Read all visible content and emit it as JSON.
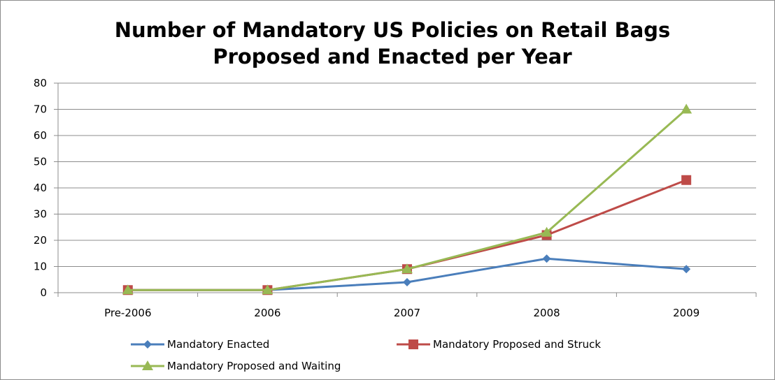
{
  "chart_data": {
    "type": "line",
    "title": "Number of Mandatory US Policies on Retail Bags",
    "subtitle": "Proposed and Enacted per Year",
    "categories": [
      "Pre-2006",
      "2006",
      "2007",
      "2008",
      "2009"
    ],
    "ylim": [
      0,
      80
    ],
    "yticks": [
      0,
      10,
      20,
      30,
      40,
      50,
      60,
      70,
      80
    ],
    "xlabel": "",
    "ylabel": "",
    "grid": true,
    "legend_position": "bottom",
    "series": [
      {
        "name": "Mandatory Enacted",
        "values": [
          1,
          1,
          4,
          13,
          9
        ],
        "color": "#4a7ebb",
        "marker": "diamond"
      },
      {
        "name": "Mandatory Proposed and Struck",
        "values": [
          1,
          1,
          9,
          22,
          43
        ],
        "color": "#be4b48",
        "marker": "square"
      },
      {
        "name": "Mandatory Proposed and Waiting",
        "values": [
          1,
          1,
          9,
          23,
          70
        ],
        "color": "#98b954",
        "marker": "triangle"
      }
    ]
  }
}
